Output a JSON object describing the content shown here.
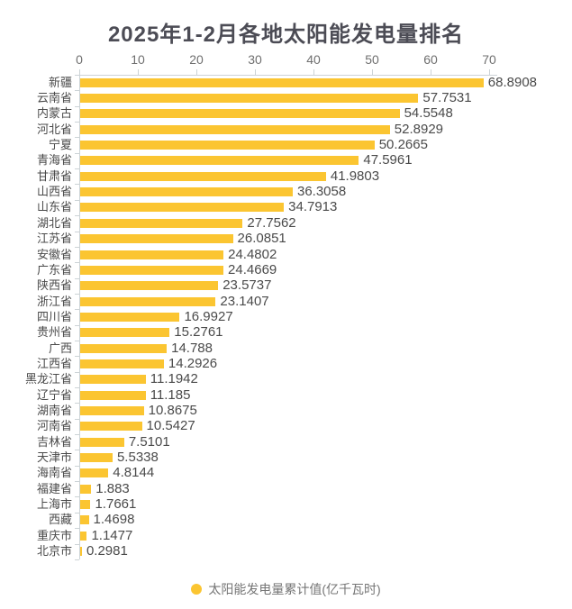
{
  "chart_data": {
    "type": "bar",
    "orientation": "horizontal",
    "title": "2025年1-2月各地太阳能发电量排名",
    "legend": {
      "label": "太阳能发电量累计值(亿千瓦时)",
      "position": "bottom",
      "marker": "circle"
    },
    "series_name": "太阳能发电量累计值(亿千瓦时)",
    "bar_color": "#fbc531",
    "xlim": [
      0,
      70
    ],
    "x_ticks": [
      0,
      10,
      20,
      30,
      40,
      50,
      60,
      70
    ],
    "x_axis_position": "top",
    "grid": false,
    "value_labels": "outside-end",
    "categories": [
      "新疆",
      "云南省",
      "内蒙古",
      "河北省",
      "宁夏",
      "青海省",
      "甘肃省",
      "山西省",
      "山东省",
      "湖北省",
      "江苏省",
      "安徽省",
      "广东省",
      "陕西省",
      "浙江省",
      "四川省",
      "贵州省",
      "广西",
      "江西省",
      "黑龙江省",
      "辽宁省",
      "湖南省",
      "河南省",
      "吉林省",
      "天津市",
      "海南省",
      "福建省",
      "上海市",
      "西藏",
      "重庆市",
      "北京市"
    ],
    "values": [
      68.8908,
      57.7531,
      54.5548,
      52.8929,
      50.2665,
      47.5961,
      41.9803,
      36.3058,
      34.7913,
      27.7562,
      26.0851,
      24.4802,
      24.4669,
      23.5737,
      23.1407,
      16.9927,
      15.2761,
      14.788,
      14.2926,
      11.1942,
      11.185,
      10.8675,
      10.5427,
      7.5101,
      5.5338,
      4.8144,
      1.883,
      1.7661,
      1.4698,
      1.1477,
      0.2981
    ]
  }
}
